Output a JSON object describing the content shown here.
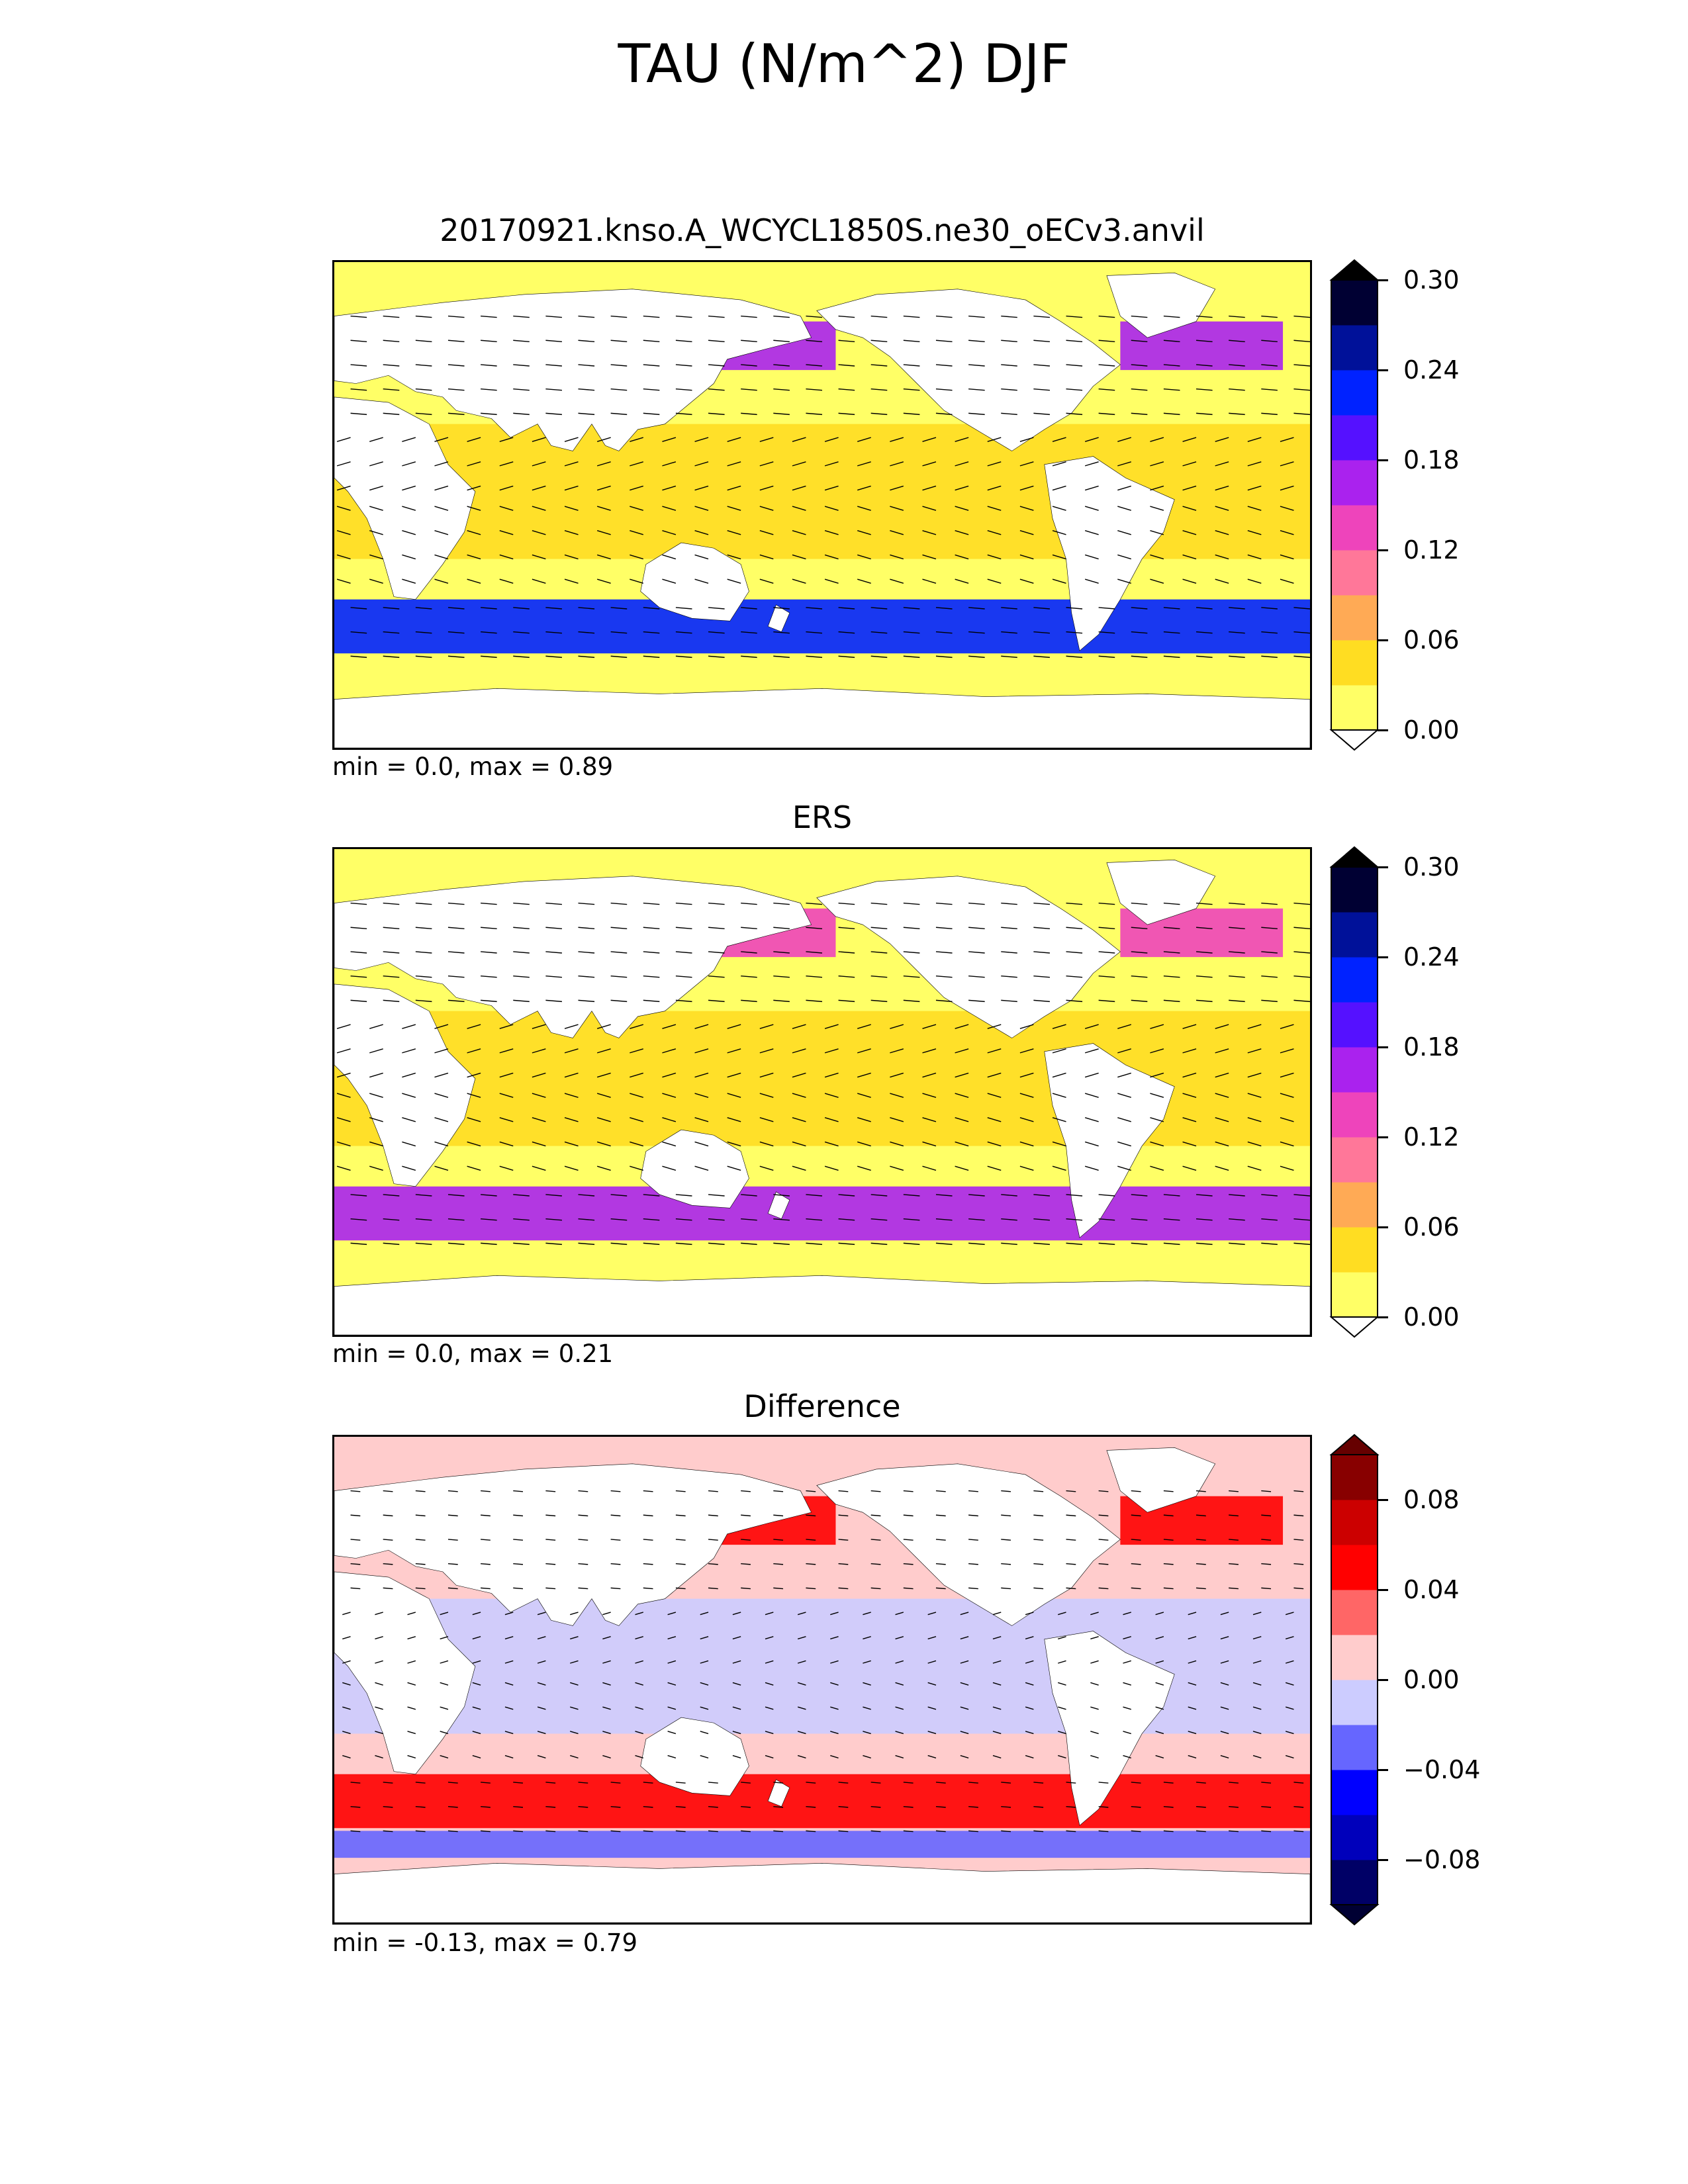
{
  "title": "TAU (N/m^2) DJF",
  "panels": [
    {
      "id": "model",
      "title": "20170921.knso.A_WCYCL1850S.ne30_oECv3.anvil",
      "minmax": "min = 0.0, max = 0.89",
      "colorbar": {
        "ticks": [
          "0.00",
          "0.06",
          "0.12",
          "0.18",
          "0.24",
          "0.30"
        ],
        "levels": [
          0.0,
          0.03,
          0.06,
          0.09,
          0.12,
          0.15,
          0.18,
          0.21,
          0.24,
          0.27,
          0.3
        ],
        "colors": [
          "#ffff66",
          "#ffdd22",
          "#ffaa55",
          "#ff7799",
          "#ee44bb",
          "#aa22ee",
          "#5511ff",
          "#0022ff",
          "#001199",
          "#000033"
        ],
        "extend_low": "#ffffff",
        "extend_high": "#000000"
      },
      "field": [
        {
          "band": "north-pacific",
          "level": 5
        },
        {
          "band": "north-atlantic",
          "level": 5
        },
        {
          "band": "tropics",
          "level": 1
        },
        {
          "band": "southern-ocean",
          "level": 7
        }
      ]
    },
    {
      "id": "obs",
      "title": "ERS",
      "minmax": "min = 0.0, max = 0.21",
      "colorbar": {
        "ticks": [
          "0.00",
          "0.06",
          "0.12",
          "0.18",
          "0.24",
          "0.30"
        ],
        "levels": [
          0.0,
          0.03,
          0.06,
          0.09,
          0.12,
          0.15,
          0.18,
          0.21,
          0.24,
          0.27,
          0.3
        ],
        "colors": [
          "#ffff66",
          "#ffdd22",
          "#ffaa55",
          "#ff7799",
          "#ee44bb",
          "#aa22ee",
          "#5511ff",
          "#0022ff",
          "#001199",
          "#000033"
        ],
        "extend_low": "#ffffff",
        "extend_high": "#000000"
      },
      "field": [
        {
          "band": "north-pacific",
          "level": 4
        },
        {
          "band": "north-atlantic",
          "level": 4
        },
        {
          "band": "tropics",
          "level": 1
        },
        {
          "band": "southern-ocean",
          "level": 5
        }
      ]
    },
    {
      "id": "diff",
      "title": "Difference",
      "minmax": "min = -0.13, max = 0.79",
      "colorbar": {
        "ticks": [
          "−0.08",
          "−0.04",
          "0.00",
          "0.04",
          "0.08"
        ],
        "levels": [
          -0.1,
          -0.08,
          -0.06,
          -0.04,
          -0.02,
          0.0,
          0.02,
          0.04,
          0.06,
          0.08,
          0.1
        ],
        "colors": [
          "#000066",
          "#0000bb",
          "#0000ff",
          "#6666ff",
          "#ccccff",
          "#ffcccc",
          "#ff6666",
          "#ff0000",
          "#cc0000",
          "#880000"
        ],
        "extend_low": "#000033",
        "extend_high": "#660000"
      },
      "field": [
        {
          "band": "north-pacific",
          "level": 7
        },
        {
          "band": "north-atlantic",
          "level": 7
        },
        {
          "band": "tropics",
          "level": 4
        },
        {
          "band": "southern-ocean",
          "level": 7
        },
        {
          "band": "subpolar-south",
          "level": 3
        }
      ]
    }
  ]
}
